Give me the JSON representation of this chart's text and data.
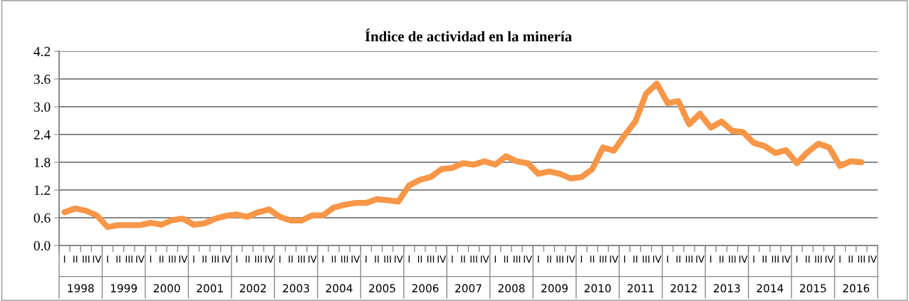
{
  "chart_data": {
    "type": "line",
    "title": "Índice de actividad en la minería",
    "categories": [
      "I",
      "II",
      "III",
      "IV",
      "I",
      "II",
      "III",
      "IV",
      "I",
      "II",
      "III",
      "IV",
      "I",
      "II",
      "III",
      "IV",
      "I",
      "II",
      "III",
      "IV",
      "I",
      "II",
      "III",
      "IV",
      "I",
      "II",
      "III",
      "IV",
      "I",
      "II",
      "III",
      "IV",
      "I",
      "II",
      "III",
      "IV",
      "I",
      "II",
      "III",
      "IV",
      "I",
      "II",
      "III",
      "IV",
      "I",
      "II",
      "III",
      "IV",
      "I",
      "II",
      "III",
      "IV",
      "I",
      "II",
      "III",
      "IV",
      "I",
      "II",
      "III",
      "IV",
      "I",
      "II",
      "III",
      "IV",
      "I",
      "II",
      "III",
      "IV",
      "I",
      "II",
      "III",
      "IV",
      "I",
      "II",
      "III",
      "IV"
    ],
    "annotations": [
      "1998",
      "1999",
      "2000",
      "2001",
      "2002",
      "2003",
      "2004",
      "2005",
      "2006",
      "2007",
      "2008",
      "2009",
      "2010",
      "2011",
      "2012",
      "2013",
      "2014",
      "2015",
      "2016"
    ],
    "series": [
      {
        "color": "#f79646",
        "values": [
          0.72,
          0.8,
          0.75,
          0.65,
          0.4,
          0.44,
          0.44,
          0.44,
          0.49,
          0.45,
          0.55,
          0.58,
          0.45,
          0.48,
          0.58,
          0.64,
          0.67,
          0.62,
          0.72,
          0.78,
          0.62,
          0.54,
          0.54,
          0.65,
          0.65,
          0.82,
          0.88,
          0.92,
          0.92,
          1.0,
          0.98,
          0.95,
          1.3,
          1.42,
          1.48,
          1.65,
          1.68,
          1.78,
          1.75,
          1.82,
          1.75,
          1.93,
          1.82,
          1.78,
          1.55,
          1.6,
          1.55,
          1.45,
          1.48,
          1.65,
          2.12,
          2.05,
          2.38,
          2.68,
          3.28,
          3.5,
          3.08,
          3.12,
          2.62,
          2.85,
          2.55,
          2.68,
          2.48,
          2.45,
          2.22,
          2.15,
          2.0,
          2.06,
          1.78,
          2.02,
          2.2,
          2.12,
          1.72,
          1.82,
          1.8,
          null
        ]
      }
    ],
    "ylim": [
      0.0,
      4.2
    ],
    "yticks": [
      {
        "value": 0.0,
        "label": "0.0"
      },
      {
        "value": 0.6,
        "label": "0.6"
      },
      {
        "value": 1.2,
        "label": "1.2"
      },
      {
        "value": 1.8,
        "label": "1.8"
      },
      {
        "value": 2.4,
        "label": "2.4"
      },
      {
        "value": 3.0,
        "label": "3.0"
      },
      {
        "value": 3.6,
        "label": "3.6"
      },
      {
        "value": 4.2,
        "label": "4.2"
      }
    ],
    "grid": "y",
    "marker": "none",
    "line_style": "solid"
  }
}
